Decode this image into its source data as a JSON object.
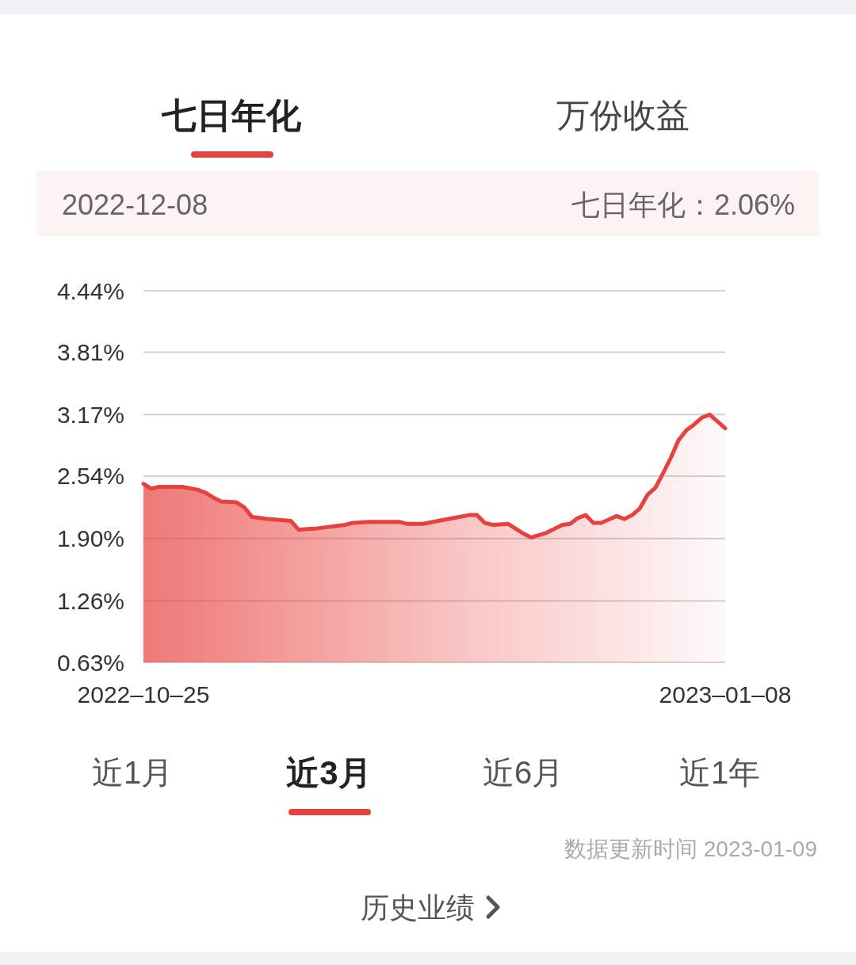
{
  "chart_data": {
    "type": "area",
    "x": [
      "2022-10-25",
      "2022-10-26",
      "2022-10-27",
      "2022-10-30",
      "2022-11-01",
      "2022-11-02",
      "2022-11-03",
      "2022-11-04",
      "2022-11-06",
      "2022-11-07",
      "2022-11-08",
      "2022-11-10",
      "2022-11-13",
      "2022-11-14",
      "2022-11-16",
      "2022-11-20",
      "2022-11-21",
      "2022-11-23",
      "2022-11-27",
      "2022-11-28",
      "2022-11-30",
      "2022-12-02",
      "2022-12-04",
      "2022-12-06",
      "2022-12-07",
      "2022-12-08",
      "2022-12-09",
      "2022-12-11",
      "2022-12-13",
      "2022-12-14",
      "2022-12-16",
      "2022-12-17",
      "2022-12-18",
      "2022-12-19",
      "2022-12-20",
      "2022-12-21",
      "2022-12-22",
      "2022-12-23",
      "2022-12-25",
      "2022-12-26",
      "2022-12-27",
      "2022-12-28",
      "2022-12-29",
      "2022-12-30",
      "2022-12-31",
      "2023-01-01",
      "2023-01-02",
      "2023-01-03",
      "2023-01-04",
      "2023-01-05",
      "2023-01-06",
      "2023-01-07",
      "2023-01-08"
    ],
    "series": [
      {
        "color": "#e8403c",
        "values": [
          2.46,
          2.41,
          2.43,
          2.43,
          2.4,
          2.37,
          2.32,
          2.28,
          2.27,
          2.22,
          2.12,
          2.1,
          2.08,
          1.99,
          2.0,
          2.04,
          2.06,
          2.07,
          2.07,
          2.05,
          2.05,
          2.08,
          2.11,
          2.14,
          2.14,
          2.06,
          2.04,
          2.05,
          1.95,
          1.91,
          1.96,
          2.0,
          2.04,
          2.05,
          2.11,
          2.14,
          2.06,
          2.06,
          2.13,
          2.1,
          2.14,
          2.21,
          2.35,
          2.42,
          2.57,
          2.73,
          2.91,
          3.01,
          3.07,
          3.14,
          3.17,
          3.1,
          3.03
        ]
      }
    ],
    "xlim": [
      "2022-10-25",
      "2023-01-08"
    ],
    "xticks": [
      {
        "value": "2022-10-25",
        "label": "2022–10–25"
      },
      {
        "value": "2023-01-08",
        "label": "2023–01–08"
      }
    ],
    "ylim": [
      0.63,
      4.44
    ],
    "yticks": [
      {
        "value": 0.63,
        "label": "0.63%"
      },
      {
        "value": 1.26,
        "label": "1.26%"
      },
      {
        "value": 1.9,
        "label": "1.90%"
      },
      {
        "value": 2.54,
        "label": "2.54%"
      },
      {
        "value": 3.17,
        "label": "3.17%"
      },
      {
        "value": 3.81,
        "label": "3.81%"
      },
      {
        "value": 4.44,
        "label": "4.44%"
      }
    ],
    "grid": "y",
    "annotations": [
      "七日年化",
      "万份收益",
      "2022-12-08",
      "七日年化：2.06%",
      "近1月",
      "近3月",
      "近6月",
      "近1年",
      "数据更新时间 2023-01-09",
      "历史业绩"
    ]
  }
}
